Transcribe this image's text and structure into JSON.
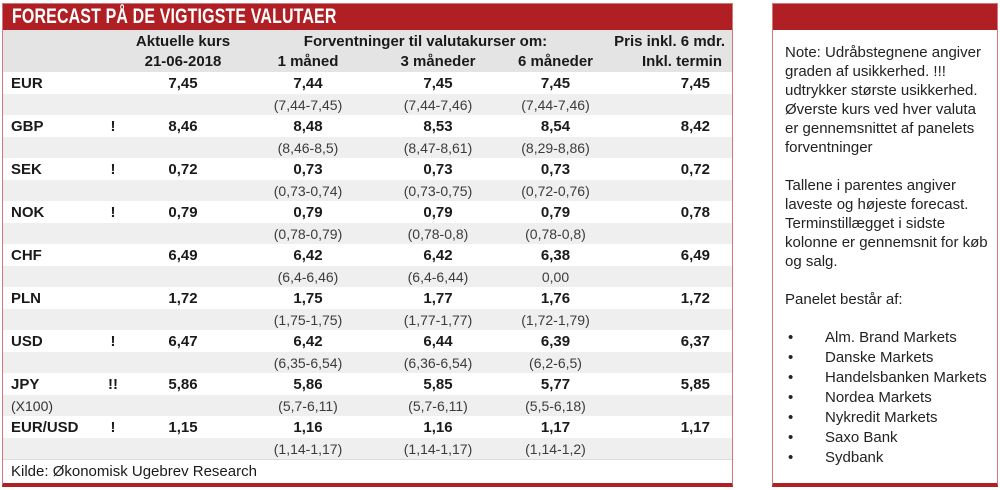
{
  "title": "FORECAST PÅ DE VIGTIGSTE VALUTAER",
  "header": {
    "aktuelle_label": "Aktuelle kurs",
    "aktuelle_date": "21-06-2018",
    "forventninger_label": "Forventninger til valutakurser om:",
    "col_1m": "1 måned",
    "col_3m": "3 måneder",
    "col_6m": "6 måneder",
    "pris_label": "Pris inkl. 6 mdr.",
    "termin_label": "Inkl. termin"
  },
  "rows": [
    {
      "currency": "EUR",
      "warn": "",
      "sub_label": "",
      "aktuelle": "7,45",
      "m1": "7,44",
      "m3": "7,45",
      "m6": "7,45",
      "termin": "7,45",
      "r1": "(7,44-7,45)",
      "r3": "(7,44-7,46)",
      "r6": "(7,44-7,46)"
    },
    {
      "currency": "GBP",
      "warn": "!",
      "sub_label": "",
      "aktuelle": "8,46",
      "m1": "8,48",
      "m3": "8,53",
      "m6": "8,54",
      "termin": "8,42",
      "r1": "(8,46-8,5)",
      "r3": "(8,47-8,61)",
      "r6": "(8,29-8,86)"
    },
    {
      "currency": "SEK",
      "warn": "!",
      "sub_label": "",
      "aktuelle": "0,72",
      "m1": "0,73",
      "m3": "0,73",
      "m6": "0,73",
      "termin": "0,72",
      "r1": "(0,73-0,74)",
      "r3": "(0,73-0,75)",
      "r6": "(0,72-0,76)"
    },
    {
      "currency": "NOK",
      "warn": "!",
      "sub_label": "",
      "aktuelle": "0,79",
      "m1": "0,79",
      "m3": "0,79",
      "m6": "0,79",
      "termin": "0,78",
      "r1": "(0,78-0,79)",
      "r3": "(0,78-0,8)",
      "r6": "(0,78-0,8)"
    },
    {
      "currency": "CHF",
      "warn": "",
      "sub_label": "",
      "aktuelle": "6,49",
      "m1": "6,42",
      "m3": "6,42",
      "m6": "6,38",
      "termin": "6,49",
      "r1": "(6,4-6,46)",
      "r3": "(6,4-6,44)",
      "r6": "0,00"
    },
    {
      "currency": "PLN",
      "warn": "",
      "sub_label": "",
      "aktuelle": "1,72",
      "m1": "1,75",
      "m3": "1,77",
      "m6": "1,76",
      "termin": "1,72",
      "r1": "(1,75-1,75)",
      "r3": "(1,77-1,77)",
      "r6": "(1,72-1,79)"
    },
    {
      "currency": "USD",
      "warn": "!",
      "sub_label": "",
      "aktuelle": "6,47",
      "m1": "6,42",
      "m3": "6,44",
      "m6": "6,39",
      "termin": "6,37",
      "r1": "(6,35-6,54)",
      "r3": "(6,36-6,54)",
      "r6": "(6,2-6,5)"
    },
    {
      "currency": "JPY",
      "warn": "!!",
      "sub_label": "(X100)",
      "aktuelle": "5,86",
      "m1": "5,86",
      "m3": "5,85",
      "m6": "5,77",
      "termin": "5,85",
      "r1": "(5,7-6,11)",
      "r3": "(5,7-6,11)",
      "r6": "(5,5-6,18)"
    },
    {
      "currency": "EUR/USD",
      "warn": "!",
      "sub_label": "",
      "aktuelle": "1,15",
      "m1": "1,16",
      "m3": "1,16",
      "m6": "1,17",
      "termin": "1,17",
      "r1": "(1,14-1,17)",
      "r3": "(1,14-1,17)",
      "r6": "(1,14-1,2)"
    }
  ],
  "footer": {
    "kilde": "Kilde: Økonomisk Ugebrev Research"
  },
  "note_panel": {
    "para1": "Note: Udråbstegnene angiver graden af usikkerhed. !!! udtrykker største usikkerhed. Øverste kurs ved hver valuta er gennemsnittet af panelets forventninger",
    "para2": "Tallene i parentes angiver laveste og højeste forecast. Terminstillægget i sidste kolonne er gennemsnit for køb og salg.",
    "panel_heading": "Panelet består af:",
    "bullet_glyph": "•",
    "panel_members": [
      "Alm. Brand Markets",
      "Danske Markets",
      "Handelsbanken Markets",
      "Nordea Markets",
      "Nykredit Markets",
      "Saxo Bank",
      "Sydbank"
    ]
  },
  "colors": {
    "accent_red": "#b01f24",
    "header_gray": "#e4e4e4",
    "stripe_gray": "#efefef",
    "border_pink": "#cf797c"
  }
}
